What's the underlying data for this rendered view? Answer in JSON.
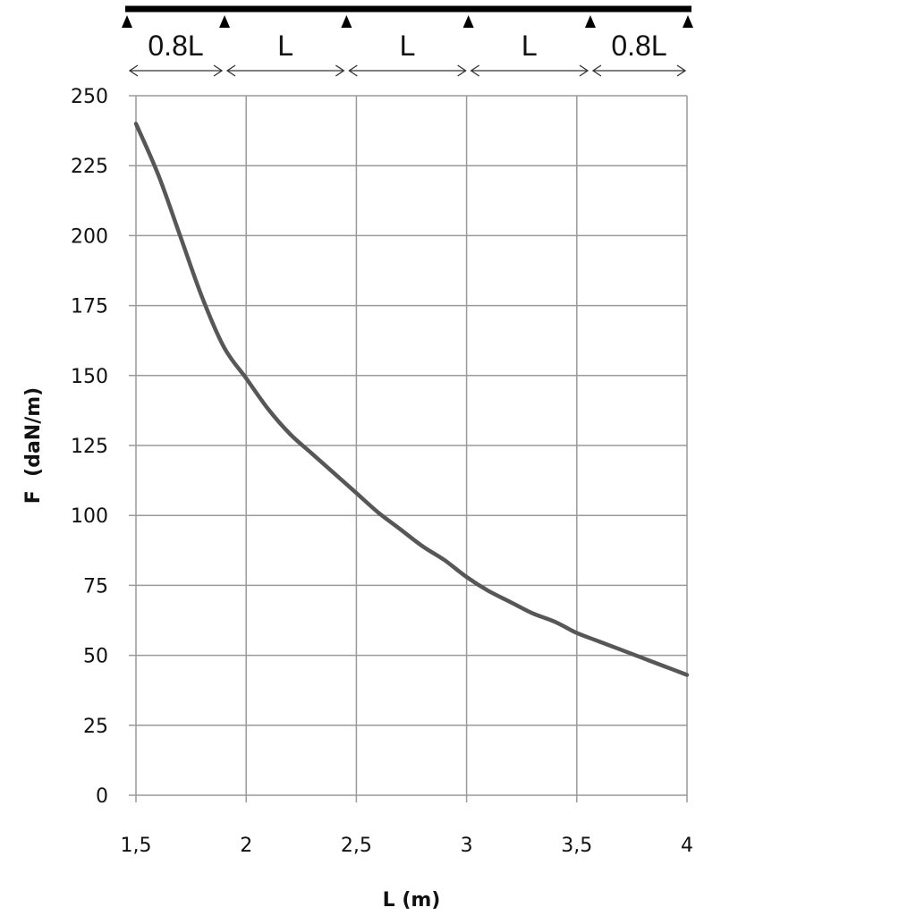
{
  "chart_data": {
    "type": "line",
    "xlabel": "L (m)",
    "ylabel": "F  (daN/m)",
    "xlim": [
      1.5,
      4
    ],
    "ylim": [
      0,
      250
    ],
    "x_ticks": [
      "1,5",
      "2",
      "2,5",
      "3",
      "3,5",
      "4"
    ],
    "y_ticks": [
      "0",
      "25",
      "50",
      "75",
      "100",
      "125",
      "150",
      "175",
      "200",
      "225",
      "250"
    ],
    "grid": true,
    "series": [
      {
        "x": [
          1.5,
          1.6,
          1.7,
          1.8,
          1.9,
          2.0,
          2.1,
          2.2,
          2.3,
          2.4,
          2.5,
          2.6,
          2.7,
          2.8,
          2.9,
          3.0,
          3.1,
          3.2,
          3.3,
          3.4,
          3.5,
          3.6,
          3.7,
          3.8,
          3.9,
          4.0
        ],
        "y": [
          240,
          222,
          200,
          178,
          160,
          149,
          138,
          129,
          122,
          115,
          108,
          101,
          95,
          89,
          84,
          78,
          73,
          69,
          65,
          62,
          58,
          55,
          52,
          49,
          46,
          43
        ]
      }
    ]
  },
  "span_diagram": {
    "spans": [
      "0.8L",
      "L",
      "L",
      "L",
      "0.8L"
    ]
  },
  "colors": {
    "curve": "#575757",
    "grid": "#9a9a9a",
    "beam": "#000000"
  }
}
